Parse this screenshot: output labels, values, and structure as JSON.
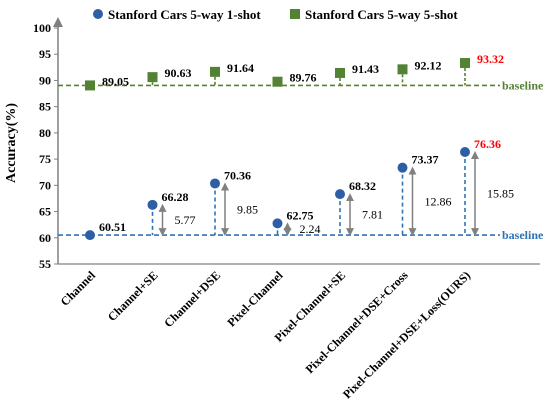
{
  "chart_data": {
    "type": "scatter",
    "title": "",
    "xlabel": "",
    "ylabel": "Accuracy(%)",
    "ylim": [
      55,
      100
    ],
    "ytick_step": 5,
    "grid": false,
    "legend_position": "top",
    "categories": [
      "Channel",
      "Channel+SE",
      "Channel+DSE",
      "Pixel-Channel",
      "Pixel-Channel+SE",
      "Pixel-Channel+DSE+Cross",
      "Pixel-Channel+DSE+Loss(OURS)"
    ],
    "series": [
      {
        "name": "Stanford Cars 5-way 1-shot",
        "marker": "circle",
        "color": "#2e5fa6",
        "values": [
          60.51,
          66.28,
          70.36,
          62.75,
          68.32,
          73.37,
          76.36
        ],
        "labels": [
          "60.51",
          "66.28",
          "70.36",
          "62.75",
          "68.32",
          "73.37",
          "76.36"
        ],
        "baseline": 60.51,
        "baseline_label": "baseline",
        "baseline_label_color": "#2e74b5",
        "baseline_color": "#2e74b5"
      },
      {
        "name": "Stanford Cars 5-way 5-shot",
        "marker": "square",
        "color": "#548235",
        "values": [
          89.05,
          90.63,
          91.64,
          89.76,
          91.43,
          92.12,
          93.32
        ],
        "labels": [
          "89.05",
          "90.63",
          "91.64",
          "89.76",
          "91.43",
          "92.12",
          "93.32"
        ],
        "baseline": 89.05,
        "baseline_label": "baseline",
        "baseline_label_color": "#548235",
        "baseline_color": "#548235"
      }
    ],
    "improvements": {
      "values": [
        "",
        "5.77",
        "9.85",
        "2.24",
        "7.81",
        "12.86",
        "15.85"
      ],
      "arrow_color": "#808080"
    },
    "highlight_color": "#ff0000",
    "highlight_index": 6
  }
}
